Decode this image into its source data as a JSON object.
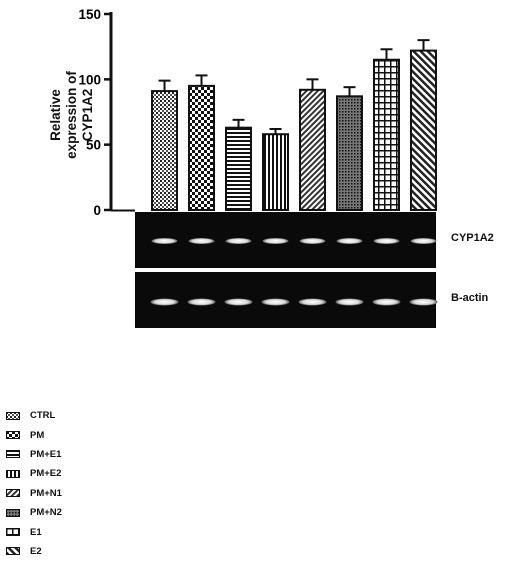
{
  "chart_data": {
    "type": "bar",
    "title": "",
    "xlabel": "",
    "ylabel_lines": [
      "Relative expression of",
      "CYP1A2"
    ],
    "ylim": [
      0,
      150
    ],
    "yticks": [
      "0",
      "50",
      "100",
      "150"
    ],
    "categories": [
      "CTRL",
      "PM",
      "PM+E1",
      "PM+E2",
      "PM+N1",
      "PM+N2",
      "E1",
      "E2"
    ],
    "values": [
      91,
      95,
      63,
      58,
      92,
      87,
      115,
      122
    ],
    "errors": [
      8,
      8,
      6,
      4,
      8,
      7,
      8,
      8
    ],
    "patterns": [
      "dense",
      "checker",
      "hstripes",
      "vstripes",
      "diag",
      "dense2",
      "grid",
      "diag2"
    ],
    "legend_position": "bottom-left",
    "grid": false
  },
  "blots": {
    "target_label": "CYP1A2",
    "control_label": "B-actin"
  }
}
